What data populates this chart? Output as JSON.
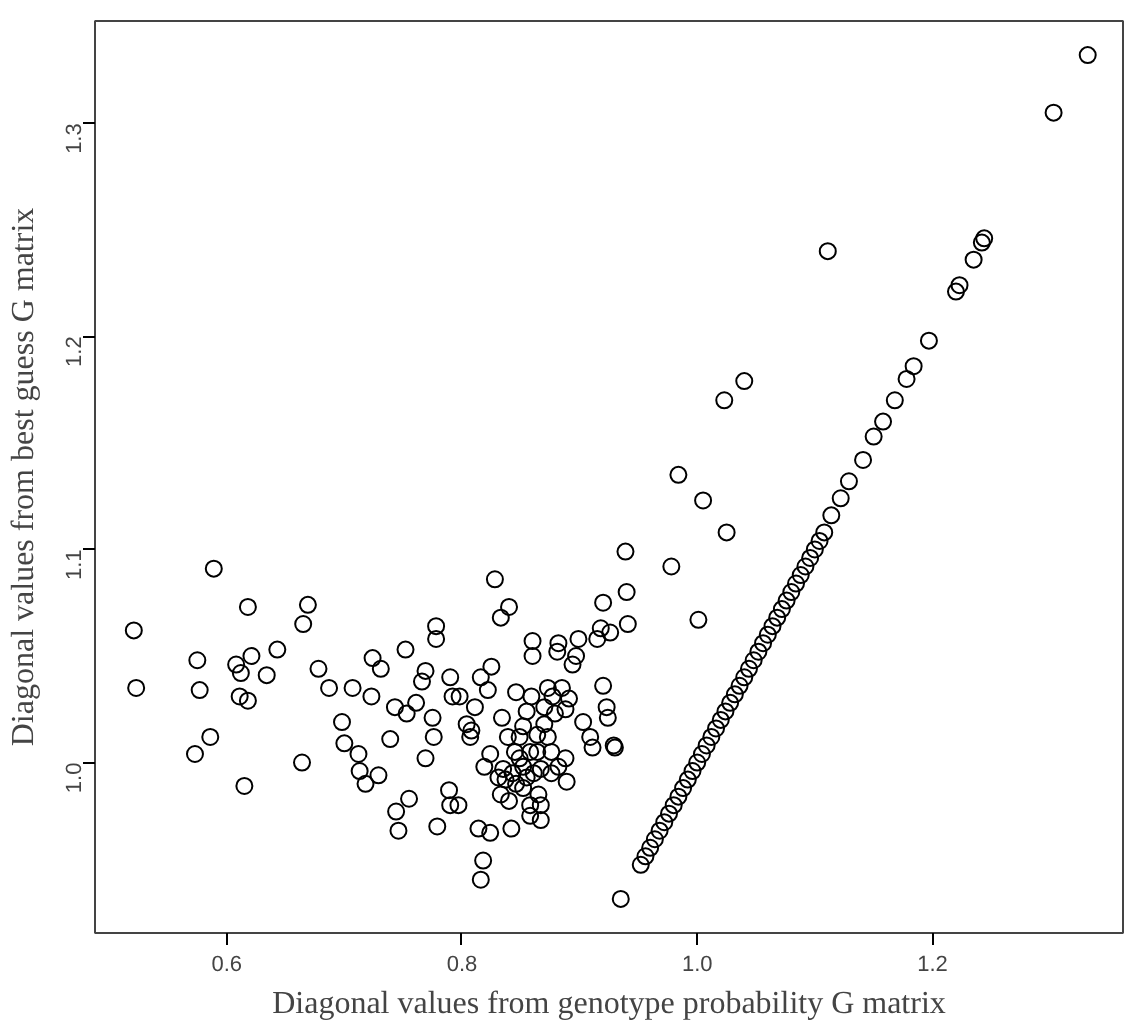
{
  "chart_data": {
    "type": "scatter",
    "xlabel": "Diagonal values from genotype probability G matrix",
    "ylabel": "Diagonal values from best guess G matrix",
    "xlim": [
      0.488,
      1.362
    ],
    "ylim": [
      0.92,
      1.348
    ],
    "xticks": [
      {
        "value": 0.6,
        "label": "0.6"
      },
      {
        "value": 0.8,
        "label": "0.8"
      },
      {
        "value": 1.0,
        "label": "1.0"
      },
      {
        "value": 1.2,
        "label": "1.2"
      }
    ],
    "yticks": [
      {
        "value": 1.0,
        "label": "1.0"
      },
      {
        "value": 1.1,
        "label": "1.1"
      },
      {
        "value": 1.2,
        "label": "1.2"
      },
      {
        "value": 1.3,
        "label": "1.3"
      }
    ],
    "grid": false,
    "marker": "circle",
    "series": [
      {
        "color": "#000000",
        "x": [
          0.521,
          0.523,
          0.589,
          0.575,
          0.577,
          0.573,
          0.586,
          0.615,
          0.618,
          0.608,
          0.612,
          0.621,
          0.611,
          0.618,
          0.634,
          0.643,
          0.665,
          0.669,
          0.664,
          0.678,
          0.687,
          0.698,
          0.7,
          0.707,
          0.712,
          0.713,
          0.718,
          0.724,
          0.723,
          0.729,
          0.731,
          0.739,
          0.743,
          0.744,
          0.746,
          0.752,
          0.755,
          0.753,
          0.761,
          0.766,
          0.769,
          0.778,
          0.778,
          0.775,
          0.776,
          0.779,
          0.769,
          0.79,
          0.792,
          0.789,
          0.79,
          0.797,
          0.798,
          0.804,
          0.807,
          0.808,
          0.811,
          0.816,
          0.818,
          0.816,
          0.814,
          0.828,
          0.825,
          0.822,
          0.819,
          0.824,
          0.824,
          0.833,
          0.84,
          0.834,
          0.837,
          0.84,
          0.842,
          0.846,
          0.849,
          0.852,
          0.855,
          0.858,
          0.86,
          0.86,
          0.864,
          0.865,
          0.867,
          0.87,
          0.873,
          0.876,
          0.879,
          0.881,
          0.882,
          0.888,
          0.889,
          0.891,
          0.894,
          0.897,
          0.899,
          0.903,
          0.909,
          0.911,
          0.915,
          0.918,
          0.92,
          0.92,
          0.923,
          0.924,
          0.93,
          0.926,
          0.831,
          0.835,
          0.843,
          0.846,
          0.852,
          0.855,
          0.861,
          0.867,
          0.849,
          0.858,
          0.845,
          0.839,
          0.864,
          0.87,
          0.852,
          0.859,
          0.873,
          0.877,
          0.885,
          0.888,
          0.876,
          0.882,
          0.833,
          0.858,
          0.867,
          1.332,
          1.303,
          1.111,
          1.244,
          1.242,
          1.235,
          1.223,
          1.22,
          1.197,
          1.184,
          1.178,
          1.168,
          1.158,
          1.15,
          1.141,
          1.129,
          1.122,
          1.114,
          1.04,
          1.023,
          0.984,
          1.005,
          1.025,
          0.939,
          0.978,
          0.94,
          1.001,
          0.941,
          0.929,
          0.935,
          0.952,
          0.956,
          0.96,
          0.964,
          0.968,
          0.972,
          0.976,
          0.98,
          0.984,
          0.988,
          0.992,
          0.996,
          1.0,
          1.004,
          1.008,
          1.012,
          1.016,
          1.02,
          1.024,
          1.028,
          1.032,
          1.036,
          1.04,
          1.044,
          1.048,
          1.052,
          1.056,
          1.06,
          1.064,
          1.068,
          1.072,
          1.076,
          1.08,
          1.084,
          1.088,
          1.092,
          1.096,
          1.1,
          1.104,
          1.108
        ],
        "values": [
          1.062,
          1.035,
          1.091,
          1.048,
          1.034,
          1.004,
          1.012,
          0.989,
          1.073,
          1.046,
          1.042,
          1.05,
          1.031,
          1.029,
          1.041,
          1.053,
          1.065,
          1.074,
          1.0,
          1.044,
          1.035,
          1.019,
          1.009,
          1.035,
          1.004,
          0.996,
          0.99,
          1.049,
          1.031,
          0.994,
          1.044,
          1.011,
          1.026,
          0.977,
          0.968,
          1.053,
          0.983,
          1.023,
          1.028,
          1.038,
          1.043,
          1.064,
          1.058,
          1.021,
          1.012,
          0.97,
          1.002,
          1.04,
          1.031,
          0.987,
          0.98,
          0.98,
          1.031,
          1.018,
          1.012,
          1.015,
          1.026,
          1.04,
          0.954,
          0.945,
          0.969,
          1.086,
          1.045,
          1.034,
          0.998,
          1.004,
          0.967,
          1.068,
          1.073,
          1.021,
          0.992,
          0.982,
          0.969,
          1.033,
          1.012,
          0.998,
          1.024,
          0.975,
          1.057,
          1.05,
          1.005,
          0.985,
          0.973,
          1.026,
          1.012,
          0.995,
          1.023,
          1.052,
          1.056,
          1.002,
          0.991,
          1.03,
          1.046,
          1.05,
          1.058,
          1.019,
          1.012,
          1.007,
          1.058,
          1.063,
          1.075,
          1.036,
          1.026,
          1.021,
          1.007,
          1.061,
          0.993,
          0.997,
          0.995,
          0.99,
          0.988,
          0.993,
          0.995,
          0.997,
          1.002,
          1.005,
          1.005,
          1.012,
          1.013,
          1.018,
          1.017,
          1.031,
          1.035,
          1.031,
          1.035,
          1.025,
          1.005,
          0.998,
          0.985,
          0.98,
          0.98,
          1.332,
          1.305,
          1.24,
          1.246,
          1.244,
          1.236,
          1.224,
          1.221,
          1.198,
          1.186,
          1.18,
          1.17,
          1.16,
          1.153,
          1.142,
          1.132,
          1.124,
          1.116,
          1.179,
          1.17,
          1.135,
          1.123,
          1.108,
          1.099,
          1.092,
          1.08,
          1.067,
          1.065,
          1.008,
          0.936,
          0.952,
          0.956,
          0.96,
          0.964,
          0.968,
          0.972,
          0.976,
          0.98,
          0.984,
          0.988,
          0.992,
          0.996,
          1.0,
          1.004,
          1.008,
          1.012,
          1.016,
          1.02,
          1.024,
          1.028,
          1.032,
          1.036,
          1.04,
          1.044,
          1.048,
          1.052,
          1.056,
          1.06,
          1.064,
          1.068,
          1.072,
          1.076,
          1.08,
          1.084,
          1.088,
          1.092,
          1.096,
          1.1,
          1.104,
          1.108
        ]
      }
    ]
  }
}
